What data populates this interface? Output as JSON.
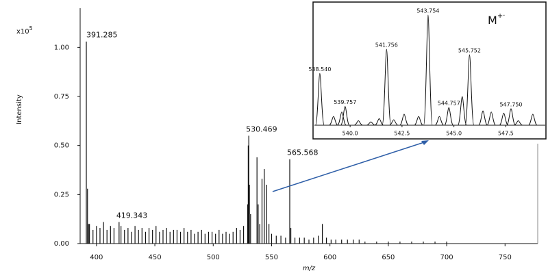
{
  "chart_data": [
    {
      "type": "stick",
      "x_label": "m/z",
      "y_label": "Intensity",
      "multiplier": "x10",
      "multiplier_exponent": "5",
      "xlim": [
        386,
        778
      ],
      "ylim": [
        0,
        1.2
      ],
      "xticks": [
        400,
        450,
        500,
        550,
        600,
        650,
        700,
        750
      ],
      "yticks": [
        {
          "value": 0,
          "label": "0.00"
        },
        {
          "value": 0.25,
          "label": "0.25"
        },
        {
          "value": 0.5,
          "label": "0.50"
        },
        {
          "value": 0.75,
          "label": "0.75"
        },
        {
          "value": 1,
          "label": "1.00"
        }
      ],
      "color": "#111111",
      "x": [
        391.285,
        392.3,
        393.2,
        394,
        397,
        400,
        403,
        406,
        409,
        412,
        415,
        419.343,
        421,
        424,
        427,
        430,
        433,
        436,
        439,
        442,
        445,
        448,
        451,
        454,
        457,
        460,
        463,
        466,
        469,
        472,
        475,
        478,
        481,
        484,
        487,
        490,
        493,
        496,
        499,
        502,
        505,
        508,
        511,
        514,
        517,
        520,
        523,
        526,
        529.5,
        530.0,
        530.469,
        531.0,
        532.0,
        537.5,
        538.5,
        539.8,
        541.8,
        543.75,
        545.75,
        547.75,
        550,
        554,
        558,
        562,
        565.568,
        566.5,
        570,
        574,
        578,
        582,
        586,
        590,
        593.5,
        597,
        601,
        605,
        610,
        615,
        620,
        625,
        630,
        640,
        650,
        660,
        670,
        680,
        690,
        700
      ],
      "values": [
        1.03,
        0.28,
        0.1,
        0.1,
        0.07,
        0.09,
        0.08,
        0.11,
        0.07,
        0.09,
        0.08,
        0.11,
        0.09,
        0.07,
        0.08,
        0.06,
        0.09,
        0.07,
        0.08,
        0.06,
        0.08,
        0.07,
        0.09,
        0.06,
        0.07,
        0.08,
        0.06,
        0.07,
        0.07,
        0.06,
        0.08,
        0.06,
        0.07,
        0.05,
        0.06,
        0.07,
        0.05,
        0.06,
        0.06,
        0.05,
        0.07,
        0.05,
        0.06,
        0.05,
        0.06,
        0.08,
        0.07,
        0.09,
        0.2,
        0.5,
        0.55,
        0.3,
        0.15,
        0.44,
        0.2,
        0.1,
        0.33,
        0.38,
        0.3,
        0.1,
        0.05,
        0.04,
        0.04,
        0.03,
        0.43,
        0.08,
        0.03,
        0.03,
        0.03,
        0.02,
        0.03,
        0.04,
        0.1,
        0.03,
        0.02,
        0.02,
        0.02,
        0.02,
        0.02,
        0.02,
        0.01,
        0.01,
        0.01,
        0.01,
        0.01,
        0.01,
        0.01,
        0.01
      ],
      "annotations": [
        {
          "text": "391.285",
          "x": 391.285,
          "y": 1.03
        },
        {
          "text": "419.343",
          "x": 419.343,
          "y": 0.11
        },
        {
          "text": "530.469",
          "x": 530.469,
          "y": 0.55
        },
        {
          "text": "565.568",
          "x": 565.568,
          "y": 0.43
        }
      ]
    },
    {
      "type": "profile",
      "title": "M",
      "title_superscript": "+·",
      "xlim": [
        538.28,
        549.4
      ],
      "ylim": [
        0,
        105
      ],
      "xticks": [
        {
          "value": 540,
          "label": "540.0"
        },
        542.5,
        {
          "value": 545,
          "label": "545.0"
        },
        547.5
      ],
      "color": "#111111",
      "x": [
        538.54,
        539.2,
        539.6,
        539.757,
        540.4,
        541.0,
        541.4,
        541.756,
        542.1,
        542.6,
        543.3,
        543.754,
        544.3,
        544.757,
        545.4,
        545.752,
        546.4,
        546.8,
        547.4,
        547.75,
        548.1,
        548.8
      ],
      "values": [
        47,
        8,
        12,
        17,
        4,
        3,
        6,
        69,
        5,
        10,
        8,
        100,
        8,
        16,
        26,
        64,
        13,
        12,
        11,
        15,
        4,
        10
      ],
      "annotations": [
        {
          "text": "538.540",
          "x": 538.54,
          "y": 47
        },
        {
          "text": "539.757",
          "x": 539.757,
          "y": 17
        },
        {
          "text": "541.756",
          "x": 541.756,
          "y": 69
        },
        {
          "text": "543.754",
          "x": 543.754,
          "y": 100
        },
        {
          "text": "544.757",
          "x": 544.757,
          "y": 16
        },
        {
          "text": "545.752",
          "x": 545.752,
          "y": 64
        },
        {
          "text": "547.750",
          "x": 547.75,
          "y": 15
        }
      ]
    }
  ]
}
